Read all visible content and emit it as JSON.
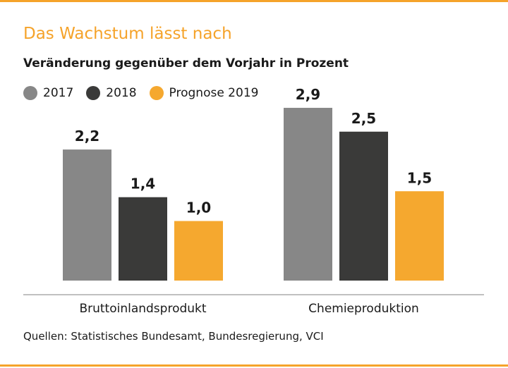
{
  "title": "Das Wachstum lässt nach",
  "subtitle": "Veränderung gegenüber dem Vorjahr in Prozent",
  "source": "Quellen: Statistisches Bundesamt, Bundesregierung, VCI",
  "colors": {
    "accent": "#f5a32a",
    "rule": "#f5a32a",
    "baseline": "#9a9a9a"
  },
  "chart_data": {
    "type": "bar",
    "categories": [
      "Bruttoinlandsprodukt",
      "Chemieproduktion"
    ],
    "series": [
      {
        "name": "2017",
        "color": "#878787",
        "values": [
          2.2,
          2.9
        ],
        "labels": [
          "2,2",
          "2,9"
        ]
      },
      {
        "name": "2018",
        "color": "#3a3a39",
        "values": [
          1.4,
          2.5
        ],
        "labels": [
          "1,4",
          "2,5"
        ]
      },
      {
        "name": "Prognose 2019",
        "color": "#f5a82f",
        "values": [
          1.0,
          1.5
        ],
        "labels": [
          "1,0",
          "1,5"
        ]
      }
    ],
    "ylim": [
      0,
      2.9
    ],
    "grid": false,
    "legend_position": "top-left",
    "data_labels": true
  }
}
